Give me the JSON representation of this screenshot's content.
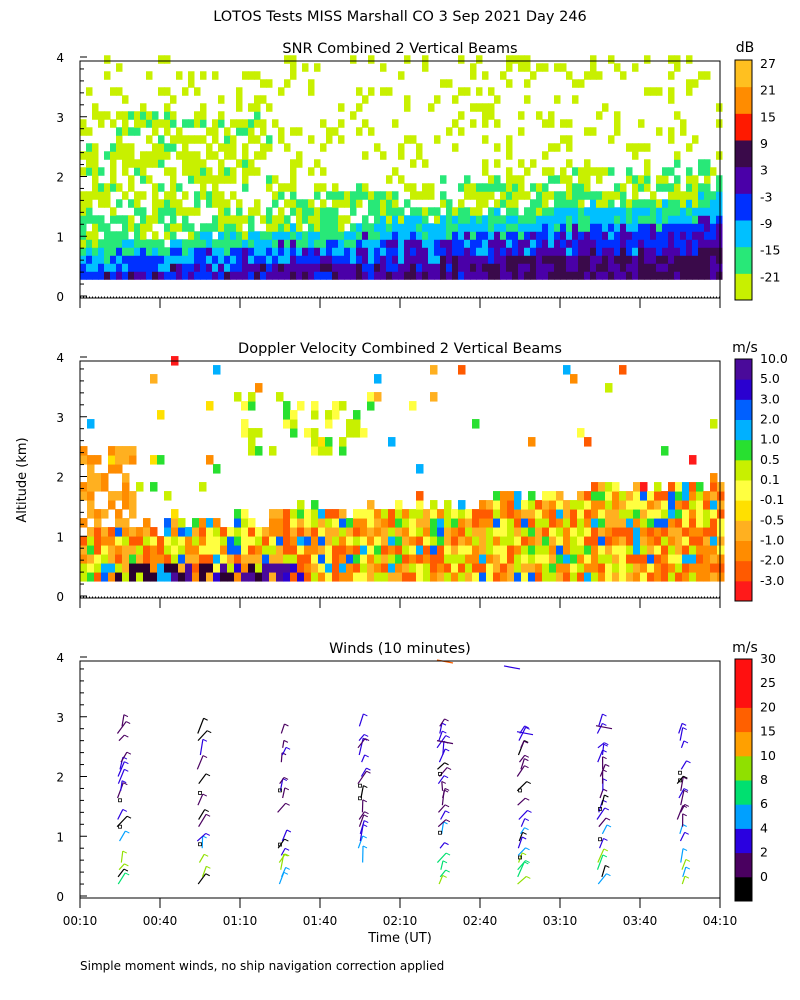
{
  "header": {
    "title": "LOTOS Tests MISS Marshall CO    3 Sep 2021 Day 246"
  },
  "footer": {
    "note": "Simple moment winds, no ship navigation correction applied"
  },
  "shared_axes": {
    "ylabel": "Altitude (km)",
    "xlabel": "Time (UT)",
    "time_ticks": [
      "00:10",
      "00:40",
      "01:10",
      "01:40",
      "02:10",
      "02:40",
      "03:10",
      "03:40",
      "04:10"
    ],
    "alt_ticks": [
      "0",
      "1",
      "2",
      "3",
      "4"
    ]
  },
  "colors": {
    "snr_scale": [
      "#c8f000",
      "#28e878",
      "#00c0ff",
      "#0030ff",
      "#4a00a8",
      "#3a0a4a",
      "#ff1a00",
      "#ff8c00",
      "#ffc020"
    ],
    "vel_scale": [
      "#ff1a1a",
      "#ff5a00",
      "#ff8c00",
      "#ffb020",
      "#ffe000",
      "#ffff40",
      "#c8f000",
      "#28e030",
      "#00b0ff",
      "#0060ff",
      "#2a00d0",
      "#4a0a9a",
      "#2a0030"
    ],
    "wind_scale": [
      "#000000",
      "#4a0060",
      "#2a00e0",
      "#00a0ff",
      "#00e070",
      "#90e000",
      "#ffa000",
      "#ff6000",
      "#ff1010"
    ]
  },
  "chart_data": [
    {
      "type": "heatmap",
      "title": "SNR Combined 2 Vertical Beams",
      "units": "dB",
      "xlabel": "",
      "ylabel": "Altitude (km)",
      "xlim": [
        "00:10",
        "04:10"
      ],
      "ylim": [
        0,
        4
      ],
      "colorbar_labels": [
        "-21",
        "-15",
        "-9",
        "-3",
        "3",
        "9",
        "15",
        "21",
        "27"
      ],
      "colorbar_values": [
        -21,
        -15,
        -9,
        -3,
        3,
        9,
        15,
        21,
        27
      ],
      "description_values": {
        "strong_layer_top_km_start": 0.8,
        "strong_layer_top_km_end": 1.6,
        "max_echo_height_km": 4.0
      }
    },
    {
      "type": "heatmap",
      "title": "Doppler Velocity Combined 2 Vertical Beams",
      "units": "m/s",
      "xlabel": "",
      "ylabel": "Altitude (km)",
      "xlim": [
        "00:10",
        "04:10"
      ],
      "ylim": [
        0,
        4
      ],
      "colorbar_labels": [
        "-3.0",
        "-2.0",
        "-1.0",
        "-0.5",
        "-0.1",
        "0.1",
        "0.5",
        "1.0",
        "2.0",
        "3.0",
        "5.0",
        "10.0"
      ],
      "colorbar_values": [
        -3.0,
        -2.0,
        -1.0,
        -0.5,
        -0.1,
        0.1,
        0.5,
        1.0,
        2.0,
        3.0,
        5.0,
        10.0
      ]
    },
    {
      "type": "scatter",
      "title": "Winds (10 minutes)",
      "units": "m/s",
      "xlabel": "Time (UT)",
      "ylabel": "Altitude (km)",
      "xlim": [
        "00:10",
        "04:10"
      ],
      "ylim": [
        0,
        4
      ],
      "colorbar_labels": [
        "0",
        "2",
        "4",
        "6",
        "8",
        "10",
        "15",
        "20",
        "25",
        "30"
      ],
      "colorbar_values": [
        0,
        2,
        4,
        6,
        8,
        10,
        15,
        20,
        25,
        30
      ],
      "profile_times": [
        "00:35",
        "01:05",
        "01:35",
        "02:05",
        "02:35",
        "03:05",
        "03:35",
        "04:05"
      ]
    }
  ]
}
